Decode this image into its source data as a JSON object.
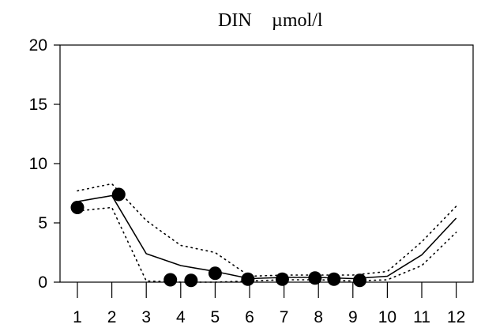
{
  "chart_data": {
    "type": "line",
    "title": "DIN",
    "unit": "µmol/l",
    "xlabel": "",
    "ylabel": "",
    "x_ticks": [
      "1",
      "2",
      "3",
      "4",
      "5",
      "6",
      "7",
      "8",
      "9",
      "10",
      "11",
      "12"
    ],
    "y_ticks": [
      "0",
      "5",
      "10",
      "15",
      "20"
    ],
    "xlim": [
      0.5,
      12.6
    ],
    "ylim": [
      0,
      20
    ],
    "grid": false,
    "series": [
      {
        "style": "solid-line",
        "x": [
          1,
          2,
          3,
          4,
          5,
          6,
          7,
          8,
          9,
          10,
          11,
          12
        ],
        "y": [
          6.8,
          7.3,
          2.4,
          1.4,
          0.9,
          0.3,
          0.4,
          0.4,
          0.3,
          0.5,
          2.3,
          5.4
        ]
      },
      {
        "style": "dotted-line-upper",
        "x": [
          1,
          2,
          3,
          4,
          5,
          6,
          7,
          8,
          9,
          10,
          11,
          12
        ],
        "y": [
          7.7,
          8.3,
          5.2,
          3.1,
          2.5,
          0.5,
          0.6,
          0.6,
          0.6,
          0.9,
          3.4,
          6.4
        ]
      },
      {
        "style": "dotted-line-lower",
        "x": [
          1,
          2,
          3,
          4,
          5,
          6,
          7,
          8,
          9,
          10,
          11,
          12
        ],
        "y": [
          6.0,
          6.3,
          0.1,
          0.0,
          0.0,
          0.1,
          0.2,
          0.2,
          0.1,
          0.2,
          1.4,
          4.2
        ]
      },
      {
        "style": "filled-circles",
        "x": [
          1.0,
          2.2,
          3.7,
          4.3,
          5.0,
          5.95,
          6.95,
          7.9,
          8.45,
          9.2
        ],
        "y": [
          6.3,
          7.4,
          0.2,
          0.15,
          0.75,
          0.25,
          0.25,
          0.35,
          0.25,
          0.15
        ]
      }
    ]
  }
}
